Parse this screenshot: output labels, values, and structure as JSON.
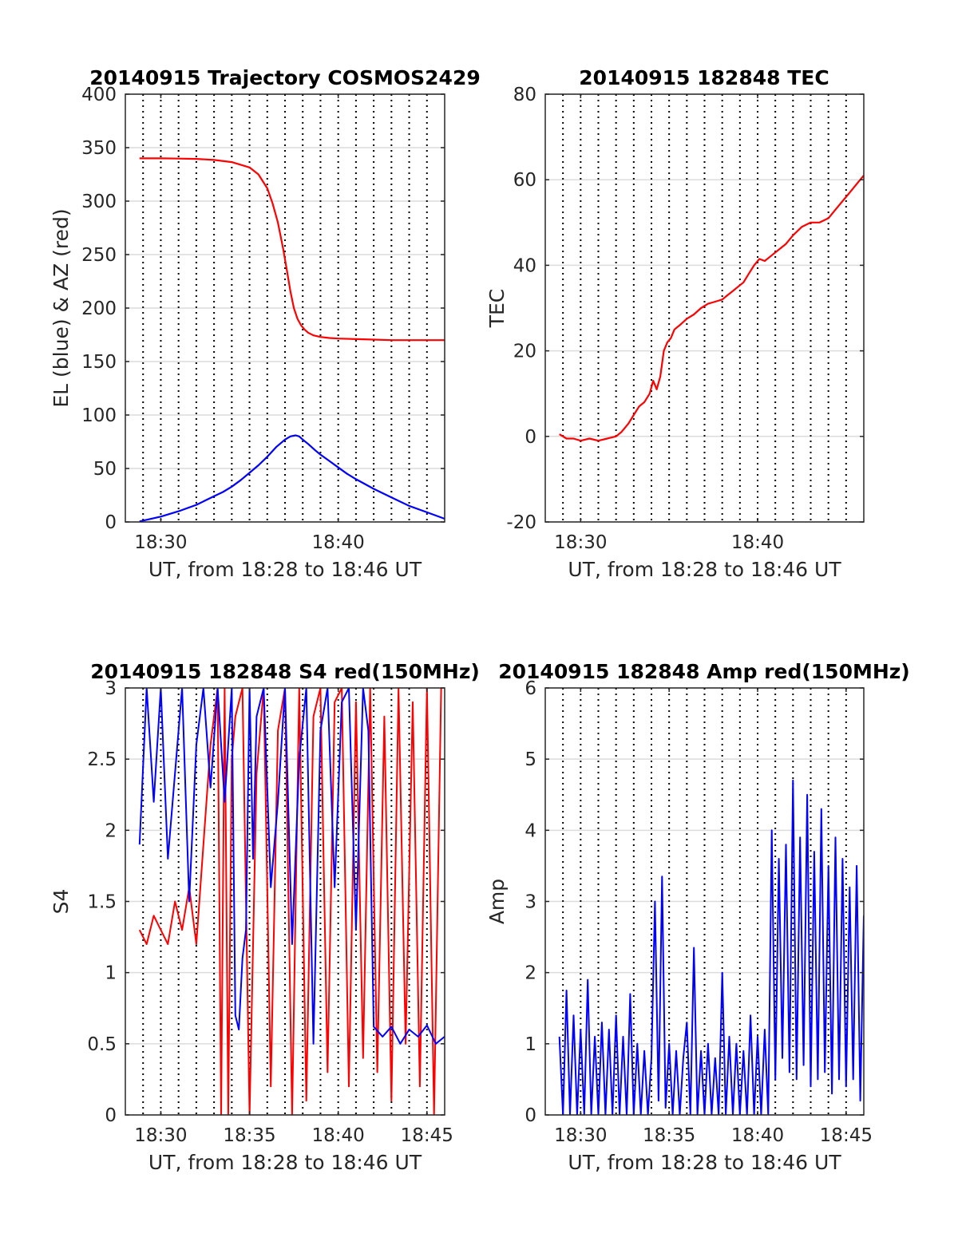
{
  "colors": {
    "red": "#ff0000",
    "blue": "#0000ff",
    "grid": "#dcdcdc",
    "axis": "#262626"
  },
  "chart_data": [
    {
      "id": "trajectory",
      "type": "line",
      "title": "20140915 Trajectory COSMOS2429",
      "xlabel": "UT, from 18:28 to 18:46 UT",
      "ylabel": "EL (blue) & AZ (red)",
      "xlim_min": [
        28,
        46
      ],
      "ylim": [
        0,
        400
      ],
      "yticks": [
        0,
        50,
        100,
        150,
        200,
        250,
        300,
        350,
        400
      ],
      "yticklabels": [
        "0",
        "50",
        "100",
        "150",
        "200",
        "250",
        "300",
        "350",
        "400"
      ],
      "xticks_min": [
        30,
        40
      ],
      "xticklabels": [
        "18:30",
        "18:40"
      ],
      "vgrid_min": [
        29,
        30,
        31,
        32,
        33,
        34,
        35,
        36,
        37,
        38,
        39,
        40,
        41,
        42,
        43,
        44,
        45
      ],
      "grid": true,
      "series": [
        {
          "color": "red",
          "x_min": [
            28.8,
            30,
            31,
            32,
            33,
            34,
            35,
            35.5,
            36,
            36.3,
            36.6,
            36.9,
            37.1,
            37.3,
            37.5,
            37.7,
            37.9,
            38.1,
            38.3,
            38.6,
            39,
            39.5,
            40,
            41,
            42,
            43,
            44,
            45,
            46
          ],
          "values": [
            340,
            340,
            339.8,
            339.5,
            338.5,
            336.5,
            331.5,
            325,
            312,
            298,
            280,
            255,
            236,
            216,
            200,
            190,
            184,
            180,
            177,
            174.5,
            173,
            172,
            171.5,
            171,
            170.5,
            170,
            170,
            170,
            170
          ]
        },
        {
          "color": "blue",
          "x_min": [
            28.8,
            30,
            31,
            32,
            33,
            33.5,
            34,
            34.5,
            35,
            35.5,
            36,
            36.5,
            37,
            37.3,
            37.6,
            37.8,
            38,
            38.3,
            38.7,
            39,
            39.5,
            40,
            40.5,
            41,
            42,
            43,
            44,
            45,
            46
          ],
          "values": [
            0.5,
            5,
            10,
            16,
            24,
            28,
            33,
            39,
            46,
            53,
            61,
            70,
            77,
            80,
            81,
            80,
            77,
            73,
            67,
            63,
            57,
            51,
            45,
            40,
            31,
            23,
            15,
            9,
            3
          ]
        }
      ]
    },
    {
      "id": "tec",
      "type": "line",
      "title": "20140915 182848 TEC",
      "xlabel": "UT, from 18:28 to 18:46 UT",
      "ylabel": "TEC",
      "xlim_min": [
        28,
        46
      ],
      "ylim": [
        -20,
        80
      ],
      "yticks": [
        -20,
        0,
        20,
        40,
        60,
        80
      ],
      "yticklabels": [
        "-20",
        "0",
        "20",
        "40",
        "60",
        "80"
      ],
      "xticks_min": [
        30,
        40
      ],
      "xticklabels": [
        "18:30",
        "18:40"
      ],
      "vgrid_min": [
        29,
        30,
        31,
        32,
        33,
        34,
        35,
        36,
        37,
        38,
        39,
        40,
        41,
        42,
        43,
        44,
        45
      ],
      "grid": true,
      "series": [
        {
          "color": "red",
          "x_min": [
            28.8,
            29.2,
            29.6,
            30,
            30.5,
            31,
            31.5,
            32,
            32.3,
            32.7,
            33,
            33.3,
            33.6,
            33.9,
            34.1,
            34.3,
            34.5,
            34.7,
            34.9,
            35.1,
            35.3,
            35.6,
            36,
            36.4,
            36.8,
            37.2,
            37.6,
            38,
            38.3,
            38.6,
            38.9,
            39.2,
            39.5,
            39.8,
            40.1,
            40.4,
            40.7,
            41,
            41.3,
            41.6,
            42,
            42.5,
            43,
            43.5,
            44,
            44.4,
            44.8,
            45.2,
            45.6,
            46
          ],
          "values": [
            0.5,
            -0.5,
            -0.5,
            -1,
            -0.5,
            -1,
            -0.5,
            0,
            1,
            3,
            5,
            7,
            8,
            10,
            13,
            11,
            14,
            20,
            22,
            23,
            25,
            26,
            27.5,
            28.5,
            30,
            31,
            31.5,
            32,
            33,
            34,
            35,
            36,
            38,
            40,
            41.5,
            41,
            42,
            43,
            44,
            45,
            47,
            49,
            50,
            50,
            51,
            53,
            55,
            57,
            59,
            61
          ]
        }
      ]
    },
    {
      "id": "s4",
      "type": "line",
      "title": "20140915 182848 S4 red(150MHz)",
      "xlabel": "UT, from 18:28 to 18:46 UT",
      "ylabel": "S4",
      "xlim_min": [
        28,
        46
      ],
      "ylim": [
        0,
        3
      ],
      "yticks": [
        0,
        0.5,
        1,
        1.5,
        2,
        2.5,
        3
      ],
      "yticklabels": [
        "0",
        "0.5",
        "1",
        "1.5",
        "2",
        "2.5",
        "3"
      ],
      "xticks_min": [
        30,
        35,
        40,
        45
      ],
      "xticklabels": [
        "18:30",
        "18:35",
        "18:40",
        "18:45"
      ],
      "vgrid_min": [
        29,
        30,
        31,
        32,
        33,
        34,
        35,
        36,
        37,
        38,
        39,
        40,
        41,
        42,
        43,
        44,
        45
      ],
      "grid": true,
      "series": [
        {
          "color": "red",
          "x_min": [
            28.8,
            29.2,
            29.6,
            30,
            30.4,
            30.8,
            31.2,
            31.6,
            32,
            32.4,
            32.8,
            33.2,
            33.4,
            33.6,
            33.8,
            34,
            34.2,
            34.6,
            35,
            35.4,
            35.8,
            36.2,
            36.6,
            37,
            37.4,
            37.8,
            38.2,
            38.6,
            39,
            39.4,
            39.8,
            40.2,
            40.6,
            41,
            41.4,
            41.8,
            42.2,
            42.6,
            43,
            43.4,
            43.8,
            44.2,
            44.6,
            45,
            45.4,
            45.8
          ],
          "values": [
            1.3,
            1.2,
            1.4,
            1.3,
            1.2,
            1.5,
            1.3,
            1.6,
            1.2,
            1.9,
            2.6,
            3,
            0,
            3,
            0,
            2.5,
            2.8,
            3,
            0,
            2.4,
            3,
            0.2,
            2.7,
            3,
            0,
            3,
            0.1,
            2.8,
            3,
            0.3,
            2.9,
            3,
            0.2,
            2.9,
            0.4,
            3,
            0.3,
            2.8,
            0.1,
            3,
            0.5,
            2.9,
            0.2,
            3,
            0,
            3
          ]
        },
        {
          "color": "blue",
          "x_min": [
            28.8,
            29.2,
            29.6,
            30,
            30.4,
            30.8,
            31.2,
            31.6,
            32,
            32.4,
            32.8,
            33.2,
            33.6,
            34,
            34.2,
            34.4,
            34.6,
            34.8,
            35,
            35.2,
            35.4,
            35.8,
            36.2,
            36.6,
            37,
            37.4,
            37.8,
            38.2,
            38.6,
            39,
            39.4,
            39.8,
            40.2,
            40.6,
            41,
            41.4,
            41.7,
            42,
            42.5,
            43,
            43.5,
            44,
            44.5,
            45,
            45.5,
            46
          ],
          "values": [
            1.9,
            3,
            2.2,
            3,
            1.8,
            2.4,
            3,
            1.5,
            2.6,
            3,
            2.3,
            3,
            2.2,
            3,
            0.7,
            0.6,
            1.1,
            1.3,
            3,
            1.8,
            2.8,
            3,
            1.6,
            2.2,
            3,
            1.2,
            2.5,
            3,
            0.5,
            2.7,
            3,
            1.6,
            2.9,
            3,
            1.3,
            3,
            2.7,
            0.62,
            0.55,
            0.62,
            0.5,
            0.6,
            0.55,
            0.63,
            0.5,
            0.55
          ]
        }
      ]
    },
    {
      "id": "amp",
      "type": "line",
      "title": "20140915 182848 Amp red(150MHz)",
      "xlabel": "UT, from 18:28 to 18:46 UT",
      "ylabel": "Amp",
      "xlim_min": [
        28,
        46
      ],
      "ylim": [
        0,
        6
      ],
      "yticks": [
        0,
        1,
        2,
        3,
        4,
        5,
        6
      ],
      "yticklabels": [
        "0",
        "1",
        "2",
        "3",
        "4",
        "5",
        "6"
      ],
      "xticks_min": [
        30,
        35,
        40,
        45
      ],
      "xticklabels": [
        "18:30",
        "18:35",
        "18:40",
        "18:45"
      ],
      "vgrid_min": [
        29,
        30,
        31,
        32,
        33,
        34,
        35,
        36,
        37,
        38,
        39,
        40,
        41,
        42,
        43,
        44,
        45
      ],
      "grid": true,
      "series": [
        {
          "color": "blue",
          "x_min": [
            28.8,
            29,
            29.2,
            29.4,
            29.6,
            29.8,
            30,
            30.2,
            30.4,
            30.6,
            30.8,
            31,
            31.2,
            31.4,
            31.6,
            31.8,
            32,
            32.2,
            32.4,
            32.6,
            32.8,
            33,
            33.2,
            33.4,
            33.6,
            33.8,
            34,
            34.2,
            34.4,
            34.6,
            34.8,
            35,
            35.2,
            35.4,
            35.6,
            35.8,
            36,
            36.2,
            36.4,
            36.6,
            36.8,
            37,
            37.2,
            37.4,
            37.6,
            37.8,
            38,
            38.2,
            38.4,
            38.6,
            38.8,
            39,
            39.2,
            39.4,
            39.6,
            39.8,
            40,
            40.2,
            40.4,
            40.6,
            40.8,
            41,
            41.2,
            41.4,
            41.6,
            41.8,
            42,
            42.2,
            42.4,
            42.6,
            42.8,
            43,
            43.2,
            43.4,
            43.6,
            43.8,
            44,
            44.2,
            44.4,
            44.6,
            44.8,
            45,
            45.2,
            45.4,
            45.6,
            45.8,
            46
          ],
          "values": [
            1.1,
            0,
            1.75,
            0,
            1.4,
            0,
            1.2,
            0,
            1.9,
            0,
            1.1,
            0,
            1.3,
            0,
            1.2,
            0,
            1.4,
            0,
            1.1,
            0,
            1.7,
            0,
            1.0,
            0,
            0.9,
            0,
            0.8,
            3.0,
            0.2,
            3.35,
            0.1,
            1.0,
            0,
            0.9,
            0,
            0.8,
            1.3,
            0,
            2.35,
            0,
            0.9,
            0,
            1.0,
            0,
            0.8,
            0,
            2.0,
            0,
            1.1,
            0,
            1.0,
            0,
            0.9,
            0,
            1.4,
            0,
            1.1,
            0,
            1.2,
            0,
            4.0,
            0.5,
            3.6,
            0.8,
            3.8,
            0.6,
            4.7,
            0.5,
            3.9,
            0.7,
            4.5,
            0.4,
            3.7,
            0.5,
            4.3,
            0.6,
            3.5,
            0.3,
            3.9,
            0.5,
            3.6,
            0.4,
            3.2,
            0.5,
            3.5,
            0.2,
            2.8
          ]
        }
      ]
    }
  ]
}
